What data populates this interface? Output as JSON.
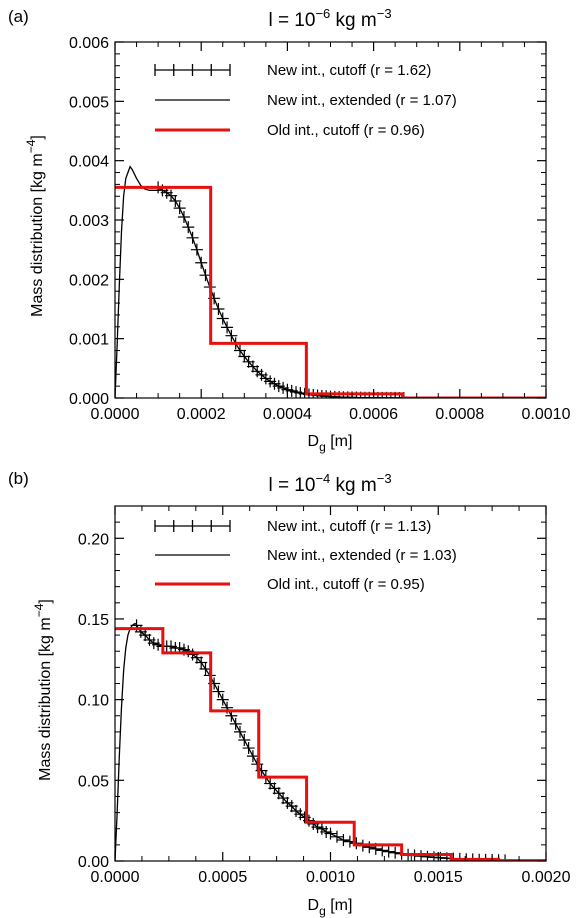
{
  "panels": [
    {
      "panel_label": "(a)",
      "title_main": "l = 10",
      "title_exp": "−6",
      "title_unit": " kg m",
      "title_unit_exp": "−3",
      "ylabel_main": "Mass distribution [kg m",
      "ylabel_exp": "−4",
      "ylabel_close": "]",
      "xlabel_main": "D",
      "xlabel_sub": "g",
      "xlabel_unit": " [m]",
      "xticks": [
        "0.0000",
        "0.0002",
        "0.0004",
        "0.0006",
        "0.0008",
        "0.0010"
      ],
      "yticks": [
        "0.000",
        "0.001",
        "0.002",
        "0.003",
        "0.004",
        "0.005",
        "0.006"
      ],
      "legend": [
        {
          "label": "New int., cutoff (r = 1.62)",
          "style": "line-plus",
          "color": "#000000"
        },
        {
          "label": "New int., extended (r = 1.07)",
          "style": "line",
          "color": "#000000"
        },
        {
          "label": "Old int., cutoff (r = 0.96)",
          "style": "line",
          "color": "#e8100e"
        }
      ]
    },
    {
      "panel_label": "(b)",
      "title_main": "l = 10",
      "title_exp": "−4",
      "title_unit": " kg m",
      "title_unit_exp": "−3",
      "ylabel_main": "Mass distribution [kg m",
      "ylabel_exp": "−4",
      "ylabel_close": "]",
      "xlabel_main": "D",
      "xlabel_sub": "g",
      "xlabel_unit": " [m]",
      "xticks": [
        "0.0000",
        "0.0005",
        "0.0010",
        "0.0015",
        "0.0020"
      ],
      "yticks": [
        "0.00",
        "0.05",
        "0.10",
        "0.15",
        "0.20"
      ],
      "legend": [
        {
          "label": "New int., cutoff (r = 1.13)",
          "style": "line-plus",
          "color": "#000000"
        },
        {
          "label": "New int., extended (r = 1.03)",
          "style": "line",
          "color": "#000000"
        },
        {
          "label": "Old int., cutoff (r = 0.95)",
          "style": "line",
          "color": "#e8100e"
        }
      ]
    }
  ],
  "chart_data": [
    {
      "type": "line",
      "xlim": [
        0,
        0.001
      ],
      "ylim": [
        0,
        0.006
      ],
      "x_ticks": [
        0,
        0.0002,
        0.0004,
        0.0006,
        0.0008,
        0.001
      ],
      "y_ticks": [
        0,
        0.001,
        0.002,
        0.003,
        0.004,
        0.005,
        0.006
      ],
      "series": [
        {
          "style": "line",
          "color": "#000000",
          "x": [
            0,
            5e-06,
            1e-05,
            1.5e-05,
            2e-05,
            2.5e-05,
            3e-05,
            3.5e-05,
            4e-05,
            5e-05,
            6e-05,
            7e-05,
            8e-05,
            9e-05,
            0.0001,
            0.00011
          ],
          "y": [
            0,
            0.0009,
            0.0019,
            0.0028,
            0.0034,
            0.0037,
            0.0038,
            0.0039,
            0.00385,
            0.0037,
            0.00358,
            0.00352,
            0.0035,
            0.0035,
            0.0035,
            0.00352
          ]
        },
        {
          "style": "plus",
          "color": "#000000",
          "x": [
            0.0001,
            0.00011,
            0.00012,
            0.00013,
            0.00014,
            0.00015,
            0.00016,
            0.00017,
            0.00018,
            0.00019,
            0.0002,
            0.00021,
            0.00022,
            0.00023,
            0.00024,
            0.00025,
            0.00026,
            0.00027,
            0.00028,
            0.00029,
            0.0003,
            0.00031,
            0.00032,
            0.00033,
            0.00034,
            0.00035,
            0.00036,
            0.00037,
            0.00038,
            0.00039,
            0.0004,
            0.00041,
            0.00042,
            0.00043,
            0.00044,
            0.00045,
            0.00046,
            0.00047,
            0.00048,
            0.00049,
            0.0005,
            0.00051,
            0.00052,
            0.00053,
            0.00054,
            0.00055,
            0.00056,
            0.00057,
            0.00058,
            0.00059,
            0.0006,
            0.00061,
            0.00062,
            0.00063,
            0.00064,
            0.00065,
            0.00066,
            0.00067
          ],
          "y": [
            0.00355,
            0.0035,
            0.00346,
            0.00341,
            0.00332,
            0.0032,
            0.00305,
            0.00288,
            0.0027,
            0.0025,
            0.00228,
            0.00207,
            0.00187,
            0.00168,
            0.0015,
            0.00134,
            0.00119,
            0.00105,
            0.00092,
            0.0008,
            0.0007,
            0.00061,
            0.00053,
            0.00045,
            0.00039,
            0.00033,
            0.00028,
            0.00024,
            0.0002,
            0.00017,
            0.00014,
            0.00012,
            0.0001,
            8.5e-05,
            7e-05,
            6e-05,
            5e-05,
            4.2e-05,
            3.5e-05,
            2.9e-05,
            2.4e-05,
            2e-05,
            1.6e-05,
            1.3e-05,
            1.1e-05,
            9e-06,
            7.5e-06,
            6e-06,
            5e-06,
            4e-06,
            3.3e-06,
            2.7e-06,
            2.2e-06,
            1.8e-06,
            1.5e-06,
            1.2e-06,
            1e-06,
            8e-07
          ]
        },
        {
          "style": "step",
          "color": "#e8100e",
          "edges": [
            0,
            0.000222,
            0.000444,
            0.000667,
            0.001
          ],
          "values": [
            0.00355,
            0.00092,
            7e-05,
            0.0
          ]
        }
      ]
    },
    {
      "type": "line",
      "xlim": [
        0,
        0.002
      ],
      "ylim": [
        0,
        0.22
      ],
      "x_ticks": [
        0,
        0.0005,
        0.001,
        0.0015,
        0.002
      ],
      "y_ticks": [
        0,
        0.05,
        0.1,
        0.15,
        0.2
      ],
      "series": [
        {
          "style": "line",
          "color": "#000000",
          "x": [
            0,
            1e-05,
            2e-05,
            3e-05,
            4e-05,
            5e-05,
            6e-05,
            7e-05,
            8e-05,
            9e-05,
            0.0001
          ],
          "y": [
            0,
            0.03,
            0.065,
            0.095,
            0.118,
            0.132,
            0.14,
            0.144,
            0.146,
            0.147,
            0.147
          ]
        },
        {
          "style": "plus",
          "color": "#000000",
          "x": [
            0.0001,
            0.00012,
            0.00014,
            0.00016,
            0.00018,
            0.0002,
            0.00022,
            0.00024,
            0.00026,
            0.00028,
            0.0003,
            0.00032,
            0.00034,
            0.00036,
            0.00038,
            0.0004,
            0.00042,
            0.00044,
            0.00046,
            0.00048,
            0.0005,
            0.00052,
            0.00054,
            0.00056,
            0.00058,
            0.0006,
            0.00062,
            0.00064,
            0.00066,
            0.00068,
            0.0007,
            0.00072,
            0.00074,
            0.00076,
            0.00078,
            0.0008,
            0.00082,
            0.00084,
            0.00086,
            0.00088,
            0.0009,
            0.00092,
            0.00094,
            0.00096,
            0.00098,
            0.001,
            0.00103,
            0.00106,
            0.00109,
            0.00112,
            0.00115,
            0.00118,
            0.00121,
            0.00124,
            0.00127,
            0.0013,
            0.00133,
            0.00136,
            0.00139,
            0.00142,
            0.00145,
            0.00148,
            0.00151,
            0.00154,
            0.00157,
            0.0016,
            0.00163,
            0.00166,
            0.00169,
            0.00172,
            0.00175,
            0.00178,
            0.00181
          ],
          "y": [
            0.146,
            0.142,
            0.14,
            0.137,
            0.135,
            0.134,
            0.133,
            0.133,
            0.133,
            0.132,
            0.132,
            0.131,
            0.13,
            0.128,
            0.126,
            0.123,
            0.119,
            0.115,
            0.11,
            0.105,
            0.1,
            0.095,
            0.09,
            0.085,
            0.08,
            0.075,
            0.07,
            0.065,
            0.06,
            0.056,
            0.052,
            0.048,
            0.045,
            0.042,
            0.039,
            0.036,
            0.034,
            0.031,
            0.029,
            0.027,
            0.025,
            0.023,
            0.021,
            0.02,
            0.018,
            0.017,
            0.015,
            0.013,
            0.012,
            0.011,
            0.0095,
            0.0085,
            0.0075,
            0.0066,
            0.0058,
            0.0051,
            0.0045,
            0.0039,
            0.0034,
            0.003,
            0.0026,
            0.0023,
            0.002,
            0.0017,
            0.0015,
            0.0013,
            0.0011,
            0.001,
            0.0008,
            0.0007,
            0.0006,
            0.0005,
            0.0004
          ]
        },
        {
          "style": "step",
          "color": "#e8100e",
          "edges": [
            0,
            0.000222,
            0.000444,
            0.000667,
            0.000889,
            0.00111,
            0.00133,
            0.00156,
            0.00178,
            0.002
          ],
          "values": [
            0.144,
            0.129,
            0.093,
            0.052,
            0.024,
            0.01,
            0.004,
            0.001,
            0.0002
          ]
        }
      ]
    }
  ]
}
